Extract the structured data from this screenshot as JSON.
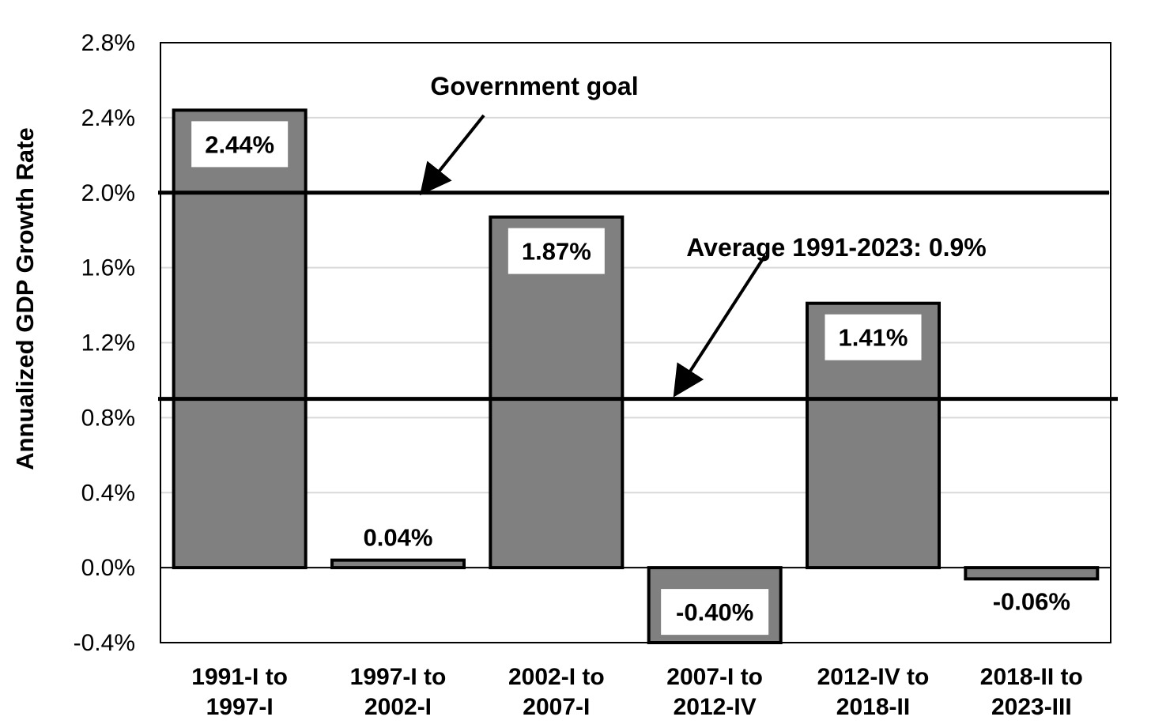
{
  "chart_data": {
    "type": "bar",
    "title": "",
    "xlabel": "",
    "ylabel": "Annualized GDP Growth Rate",
    "ylim": [
      -0.4,
      2.8
    ],
    "y_ticks": [
      -0.4,
      0.0,
      0.4,
      0.8,
      1.2,
      1.6,
      2.0,
      2.4,
      2.8
    ],
    "y_tick_labels": [
      "-0.4%",
      "0.0%",
      "0.4%",
      "0.8%",
      "1.2%",
      "1.6%",
      "2.0%",
      "2.4%",
      "2.8%"
    ],
    "grid": true,
    "legend": "none",
    "categories": [
      [
        "1991-I to",
        "1997-I"
      ],
      [
        "1997-I to",
        "2002-I"
      ],
      [
        "2002-I to",
        "2007-I"
      ],
      [
        "2007-I to",
        "2012-IV"
      ],
      [
        "2012-IV to",
        "2018-II"
      ],
      [
        "2018-II to",
        "2023-III"
      ]
    ],
    "values": [
      2.44,
      0.04,
      1.87,
      -0.4,
      1.41,
      -0.06
    ],
    "data_labels": [
      "2.44%",
      "0.04%",
      "1.87%",
      "-0.40%",
      "1.41%",
      "-0.06%"
    ],
    "reference_lines": [
      {
        "value": 2.0,
        "label": "Government goal"
      },
      {
        "value": 0.9,
        "label": "Average 1991-2023: 0.9%"
      }
    ],
    "colors": {
      "bar_fill": "#808080",
      "bar_stroke": "#000000",
      "grid": "#d9d9d9",
      "line": "#000000",
      "label_box": "#ffffff"
    }
  }
}
